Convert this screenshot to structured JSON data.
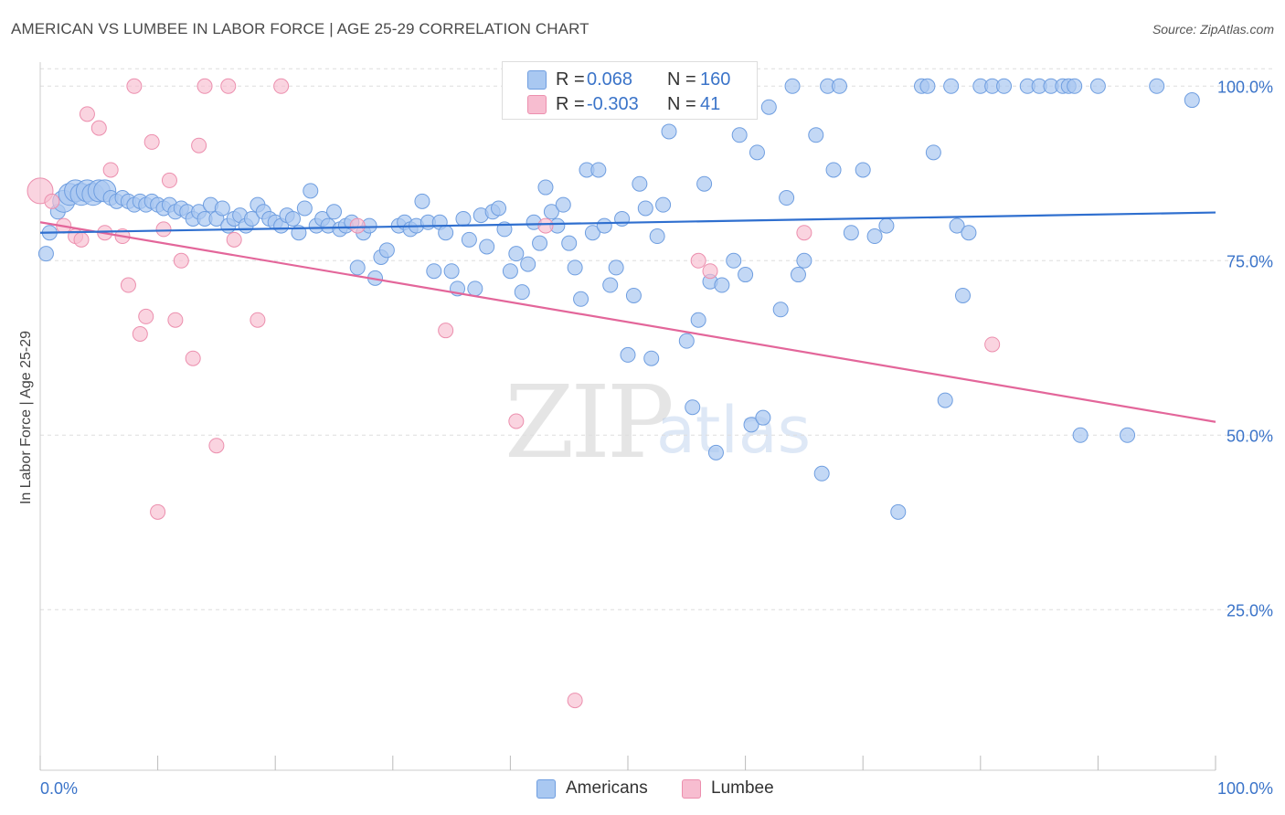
{
  "title": "AMERICAN VS LUMBEE IN LABOR FORCE | AGE 25-29 CORRELATION CHART",
  "source": "Source: ZipAtlas.com",
  "watermark": {
    "zip": "ZIP",
    "atlas": "atlas"
  },
  "legend": {
    "rows": [
      {
        "r_label": "R =",
        "r_value": "0.068",
        "n_label": "N =",
        "n_value": "160"
      },
      {
        "r_label": "R =",
        "r_value": "-0.303",
        "n_label": "N =",
        "n_value": "41"
      }
    ]
  },
  "bottom_legend": {
    "americans": "Americans",
    "lumbee": "Lumbee"
  },
  "colors": {
    "americans_fill": "#a9c8f1",
    "americans_stroke": "#6f9ee0",
    "americans_line": "#2f6fcf",
    "lumbee_fill": "#f7bdd0",
    "lumbee_stroke": "#ec8fae",
    "lumbee_line": "#e3669a",
    "tick_label": "#3b74c9",
    "grid": "#dddddd"
  },
  "chart_data": {
    "type": "scatter",
    "title": "AMERICAN VS LUMBEE IN LABOR FORCE | AGE 25-29 CORRELATION CHART",
    "xlabel": "",
    "ylabel": "In Labor Force | Age 25-29",
    "xlim": [
      0,
      100
    ],
    "ylim": [
      2,
      102
    ],
    "x_tick_labels": [
      "0.0%",
      "100.0%"
    ],
    "y_ticks": [
      25,
      50,
      75,
      100
    ],
    "y_tick_labels": [
      "25.0%",
      "50.0%",
      "75.0%",
      "100.0%"
    ],
    "grid": true,
    "series": [
      {
        "name": "Americans",
        "r": 0.068,
        "n": 160,
        "trend": {
          "x": [
            0,
            100
          ],
          "y": [
            79.0,
            81.9
          ]
        },
        "points": [
          [
            0.5,
            76
          ],
          [
            0.8,
            79
          ],
          [
            1.5,
            82
          ],
          [
            2,
            83.5
          ],
          [
            2.5,
            84.5
          ],
          [
            3,
            85
          ],
          [
            3.5,
            84.5
          ],
          [
            4,
            85
          ],
          [
            4.5,
            84.5
          ],
          [
            5,
            85
          ],
          [
            5.5,
            85
          ],
          [
            6,
            84
          ],
          [
            6.5,
            83.5
          ],
          [
            7,
            84
          ],
          [
            7.5,
            83.5
          ],
          [
            8,
            83
          ],
          [
            8.5,
            83.5
          ],
          [
            9,
            83
          ],
          [
            9.5,
            83.5
          ],
          [
            10,
            83
          ],
          [
            10.5,
            82.5
          ],
          [
            11,
            83
          ],
          [
            11.5,
            82
          ],
          [
            12,
            82.5
          ],
          [
            12.5,
            82
          ],
          [
            13,
            81
          ],
          [
            13.5,
            82
          ],
          [
            14,
            81
          ],
          [
            14.5,
            83
          ],
          [
            15,
            81
          ],
          [
            15.5,
            82.5
          ],
          [
            16,
            80
          ],
          [
            16.5,
            81
          ],
          [
            17,
            81.5
          ],
          [
            17.5,
            80
          ],
          [
            18,
            81
          ],
          [
            18.5,
            83
          ],
          [
            19,
            82
          ],
          [
            19.5,
            81
          ],
          [
            20,
            80.5
          ],
          [
            20.5,
            80
          ],
          [
            21,
            81.5
          ],
          [
            21.5,
            81
          ],
          [
            22,
            79
          ],
          [
            22.5,
            82.5
          ],
          [
            23,
            85
          ],
          [
            23.5,
            80
          ],
          [
            24,
            81
          ],
          [
            24.5,
            80
          ],
          [
            25,
            82
          ],
          [
            25.5,
            79.5
          ],
          [
            26,
            80
          ],
          [
            26.5,
            80.5
          ],
          [
            27,
            74
          ],
          [
            27.5,
            79
          ],
          [
            28,
            80
          ],
          [
            28.5,
            72.5
          ],
          [
            29,
            75.5
          ],
          [
            29.5,
            76.5
          ],
          [
            30.5,
            80
          ],
          [
            31,
            80.5
          ],
          [
            31.5,
            79.5
          ],
          [
            32,
            80
          ],
          [
            32.5,
            83.5
          ],
          [
            33,
            80.5
          ],
          [
            33.5,
            73.5
          ],
          [
            34,
            80.5
          ],
          [
            34.5,
            79
          ],
          [
            35,
            73.5
          ],
          [
            35.5,
            71
          ],
          [
            36,
            81
          ],
          [
            36.5,
            78
          ],
          [
            37,
            71
          ],
          [
            37.5,
            81.5
          ],
          [
            38,
            77
          ],
          [
            38.5,
            82
          ],
          [
            39,
            82.5
          ],
          [
            39.5,
            79.5
          ],
          [
            40,
            73.5
          ],
          [
            40.5,
            76
          ],
          [
            41,
            70.5
          ],
          [
            41.5,
            74.5
          ],
          [
            42,
            80.5
          ],
          [
            42.5,
            77.5
          ],
          [
            43,
            85.5
          ],
          [
            43.5,
            82
          ],
          [
            44,
            80
          ],
          [
            44.5,
            83
          ],
          [
            45,
            77.5
          ],
          [
            45.5,
            74
          ],
          [
            46,
            69.5
          ],
          [
            46.5,
            88
          ],
          [
            47,
            79
          ],
          [
            47.5,
            88
          ],
          [
            48,
            80
          ],
          [
            48.5,
            71.5
          ],
          [
            49,
            74
          ],
          [
            49.5,
            81
          ],
          [
            50,
            61.5
          ],
          [
            50.5,
            70
          ],
          [
            51,
            86
          ],
          [
            51.5,
            82.5
          ],
          [
            52,
            61
          ],
          [
            52.5,
            78.5
          ],
          [
            53,
            83
          ],
          [
            53.5,
            93.5
          ],
          [
            55,
            63.5
          ],
          [
            55.5,
            54
          ],
          [
            56,
            66.5
          ],
          [
            56.5,
            86
          ],
          [
            57,
            72
          ],
          [
            57.5,
            47.5
          ],
          [
            58,
            71.5
          ],
          [
            59,
            75
          ],
          [
            59.5,
            93
          ],
          [
            60,
            73
          ],
          [
            60.5,
            51.5
          ],
          [
            61,
            90.5
          ],
          [
            61.5,
            52.5
          ],
          [
            62,
            97
          ],
          [
            63,
            68
          ],
          [
            63.5,
            84
          ],
          [
            64,
            100
          ],
          [
            64.5,
            73
          ],
          [
            65,
            75
          ],
          [
            66,
            93
          ],
          [
            66.5,
            44.5
          ],
          [
            67,
            100
          ],
          [
            67.5,
            88
          ],
          [
            68,
            100
          ],
          [
            69,
            79
          ],
          [
            70,
            88
          ],
          [
            71,
            78.5
          ],
          [
            72,
            80
          ],
          [
            73,
            39
          ],
          [
            75,
            100
          ],
          [
            75.5,
            100
          ],
          [
            76,
            90.5
          ],
          [
            77,
            55
          ],
          [
            77.5,
            100
          ],
          [
            78,
            80
          ],
          [
            78.5,
            70
          ],
          [
            79,
            79
          ],
          [
            80,
            100
          ],
          [
            81,
            100
          ],
          [
            82,
            100
          ],
          [
            84,
            100
          ],
          [
            85,
            100
          ],
          [
            86,
            100
          ],
          [
            87,
            100
          ],
          [
            87.5,
            100
          ],
          [
            88,
            100
          ],
          [
            88.5,
            50
          ],
          [
            90,
            100
          ],
          [
            92.5,
            50
          ],
          [
            95,
            100
          ],
          [
            98,
            98
          ]
        ]
      },
      {
        "name": "Lumbee",
        "r": -0.303,
        "n": 41,
        "trend": {
          "x": [
            0,
            100
          ],
          "y": [
            80.5,
            51.9
          ]
        },
        "points": [
          [
            0,
            85
          ],
          [
            1,
            83.5
          ],
          [
            2,
            80
          ],
          [
            3,
            78.5
          ],
          [
            3.5,
            78
          ],
          [
            4,
            96
          ],
          [
            5,
            94
          ],
          [
            5.5,
            79
          ],
          [
            6,
            88
          ],
          [
            7,
            78.5
          ],
          [
            7.5,
            71.5
          ],
          [
            8,
            100
          ],
          [
            8.5,
            64.5
          ],
          [
            9,
            67
          ],
          [
            9.5,
            92
          ],
          [
            10,
            39
          ],
          [
            10.5,
            79.5
          ],
          [
            11,
            86.5
          ],
          [
            11.5,
            66.5
          ],
          [
            12,
            75
          ],
          [
            13,
            61
          ],
          [
            13.5,
            91.5
          ],
          [
            14,
            100
          ],
          [
            15,
            48.5
          ],
          [
            16,
            100
          ],
          [
            16.5,
            78
          ],
          [
            18.5,
            66.5
          ],
          [
            20.5,
            100
          ],
          [
            27,
            80
          ],
          [
            34.5,
            65
          ],
          [
            40.5,
            52
          ],
          [
            43,
            80
          ],
          [
            45.5,
            12
          ],
          [
            56,
            75
          ],
          [
            57,
            73.5
          ],
          [
            65,
            79
          ],
          [
            81,
            63
          ]
        ]
      }
    ]
  }
}
